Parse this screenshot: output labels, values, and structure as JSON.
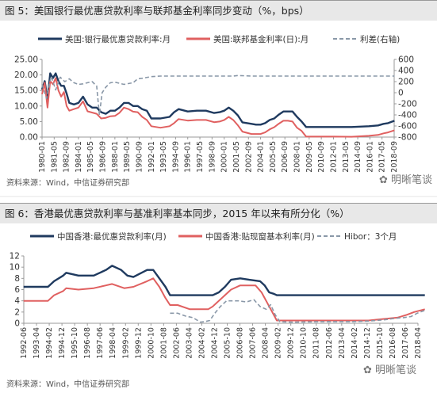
{
  "panels": [
    {
      "title": "图 5：美国银行最优惠贷款利率与联邦基金利率同步变动（%，bps）",
      "source": "资料来源：Wind，中信证券研究部",
      "watermark": "明晰笔谈"
    },
    {
      "title": "图 6：香港最优惠贷款利率与基准利率基本同步，2015 年以来有所分化（%）",
      "source": "资料来源：Wind，中信证券研究部",
      "watermark": "明晰笔谈"
    }
  ],
  "chart_data": [
    {
      "type": "line",
      "title": "图 5：美国银行最优惠贷款利率与联邦基金利率同步变动（%，bps）",
      "x_ticks": [
        "1980-01",
        "1981-05",
        "1982-09",
        "1984-01",
        "1985-05",
        "1986-09",
        "1988-01",
        "1989-05",
        "1990-09",
        "1992-01",
        "1993-05",
        "1994-09",
        "1996-01",
        "1997-05",
        "1998-09",
        "2000-01",
        "2001-05",
        "2002-09",
        "2004-01",
        "2005-05",
        "2006-09",
        "2008-01",
        "2009-05",
        "2010-09",
        "2012-01",
        "2013-05",
        "2014-09",
        "2016-01",
        "2017-05",
        "2018-09"
      ],
      "y_left": {
        "lim": [
          0,
          25
        ],
        "ticks": [
          "0.00",
          "5.00",
          "10.00",
          "15.00",
          "20.00",
          "25.00"
        ]
      },
      "y_right": {
        "lim": [
          -800,
          600
        ],
        "ticks": [
          "-800",
          "-600",
          "-400",
          "-200",
          "0",
          "200",
          "400",
          "600"
        ]
      },
      "legend_position": "top",
      "series": [
        {
          "name": "美国:银行最优惠贷款利率:月",
          "axis": "left",
          "color": "#1f3a5f",
          "style": "solid",
          "x": [
            1980.0,
            1980.3,
            1980.6,
            1980.9,
            1981.2,
            1981.5,
            1981.8,
            1982.1,
            1982.4,
            1982.7,
            1983.0,
            1983.5,
            1984.0,
            1984.5,
            1985.0,
            1985.5,
            1986.0,
            1986.5,
            1987.0,
            1987.5,
            1988.0,
            1988.5,
            1989.0,
            1989.5,
            1990.0,
            1990.5,
            1991.0,
            1991.5,
            1992.0,
            1993.0,
            1994.0,
            1994.5,
            1995.0,
            1996.0,
            1997.0,
            1998.0,
            1998.9,
            1999.5,
            2000.0,
            2000.5,
            2001.0,
            2001.5,
            2002.0,
            2003.0,
            2003.5,
            2004.0,
            2004.5,
            2005.0,
            2005.5,
            2006.0,
            2006.5,
            2007.0,
            2007.5,
            2008.0,
            2008.5,
            2009.0,
            2010.0,
            2012.0,
            2014.0,
            2015.9,
            2016.9,
            2017.5,
            2018.0,
            2018.7
          ],
          "y": [
            15.3,
            18.0,
            12.0,
            20.5,
            19.0,
            20.5,
            18.0,
            16.5,
            16.5,
            14.0,
            11.0,
            10.5,
            11.0,
            13.0,
            10.5,
            9.5,
            9.5,
            8.0,
            7.5,
            8.5,
            8.5,
            9.5,
            11.0,
            11.0,
            10.0,
            10.0,
            9.0,
            8.5,
            6.0,
            6.0,
            6.5,
            8.0,
            9.0,
            8.25,
            8.5,
            8.5,
            7.75,
            8.0,
            8.5,
            9.5,
            8.5,
            7.0,
            4.75,
            4.25,
            4.0,
            4.0,
            4.5,
            5.5,
            6.0,
            7.25,
            8.25,
            8.25,
            8.25,
            6.5,
            5.0,
            3.25,
            3.25,
            3.25,
            3.25,
            3.5,
            3.75,
            4.25,
            4.5,
            5.25
          ]
        },
        {
          "name": "美国:联邦基金利率(日):月",
          "axis": "left",
          "color": "#e06060",
          "style": "solid",
          "x": [
            1980.0,
            1980.3,
            1980.6,
            1980.9,
            1981.2,
            1981.5,
            1981.8,
            1982.1,
            1982.4,
            1982.7,
            1983.0,
            1983.5,
            1984.0,
            1984.5,
            1985.0,
            1986.0,
            1986.5,
            1987.0,
            1987.5,
            1988.0,
            1988.5,
            1989.0,
            1989.5,
            1990.0,
            1990.5,
            1991.0,
            1991.5,
            1992.0,
            1993.0,
            1994.0,
            1994.5,
            1995.0,
            1996.0,
            1997.0,
            1998.0,
            1998.9,
            1999.5,
            2000.0,
            2000.5,
            2001.0,
            2001.5,
            2002.0,
            2003.0,
            2004.0,
            2004.5,
            2005.0,
            2005.5,
            2006.0,
            2006.5,
            2007.0,
            2007.5,
            2008.0,
            2008.5,
            2009.0,
            2010.0,
            2012.0,
            2014.0,
            2015.9,
            2016.9,
            2017.5,
            2018.0,
            2018.7
          ],
          "y": [
            13.8,
            17.5,
            9.5,
            18.0,
            17.0,
            19.0,
            15.0,
            13.0,
            14.5,
            10.0,
            8.5,
            9.0,
            9.5,
            11.5,
            8.3,
            7.5,
            6.0,
            6.2,
            6.7,
            6.8,
            7.8,
            9.5,
            9.0,
            8.2,
            8.0,
            6.5,
            5.5,
            3.5,
            3.0,
            3.5,
            4.5,
            5.8,
            5.3,
            5.5,
            5.5,
            4.8,
            5.0,
            5.5,
            6.5,
            5.5,
            3.8,
            1.75,
            1.0,
            1.0,
            1.5,
            2.5,
            3.2,
            4.3,
            5.25,
            5.25,
            5.0,
            3.0,
            2.0,
            0.15,
            0.15,
            0.15,
            0.1,
            0.4,
            0.7,
            1.2,
            1.5,
            2.2
          ]
        },
        {
          "name": "利差(右轴)",
          "axis": "right",
          "color": "#8a98a8",
          "style": "dashed",
          "x": [
            1980.0,
            1980.5,
            1981.0,
            1981.5,
            1982.0,
            1982.5,
            1983.0,
            1983.5,
            1984.0,
            1984.5,
            1985.0,
            1985.5,
            1986.0,
            1986.3,
            1986.6,
            1987.0,
            1987.5,
            1988.0,
            1989.0,
            1990.0,
            1990.5,
            1991.0,
            1992.0,
            1993.0,
            1995.0,
            1997.0,
            1999.0,
            2001.0,
            2001.5,
            2003.0,
            2005.0,
            2007.0,
            2008.5,
            2009.0,
            2012.0,
            2015.0,
            2018.0,
            2018.7
          ],
          "y": [
            150,
            -100,
            300,
            50,
            280,
            200,
            250,
            180,
            150,
            160,
            180,
            200,
            120,
            -400,
            0,
            100,
            180,
            190,
            150,
            180,
            250,
            260,
            290,
            300,
            300,
            300,
            300,
            300,
            310,
            300,
            300,
            300,
            300,
            300,
            300,
            300,
            300,
            300
          ]
        }
      ]
    },
    {
      "type": "line",
      "title": "图 6：香港最优惠贷款利率与基准利率基本同步，2015 年以来有所分化（%）",
      "x_ticks": [
        "1992-06",
        "1993-04",
        "1994-02",
        "1994-12",
        "1995-10",
        "1996-08",
        "1997-06",
        "1998-04",
        "1999-02",
        "1999-12",
        "2000-10",
        "2001-08",
        "2002-06",
        "2003-04",
        "2004-02",
        "2004-12",
        "2005-10",
        "2006-08",
        "2007-06",
        "2008-04",
        "2009-02",
        "2009-12",
        "2010-10",
        "2011-08",
        "2012-06",
        "2013-04",
        "2014-02",
        "2014-12",
        "2015-10",
        "2016-08",
        "2017-06",
        "2018-04"
      ],
      "y_left": {
        "lim": [
          0,
          12
        ],
        "ticks": [
          "0",
          "2",
          "4",
          "6",
          "8",
          "10",
          "12"
        ]
      },
      "legend_position": "top",
      "series": [
        {
          "name": "中国香港:最优惠贷款利率(月)",
          "axis": "left",
          "color": "#1f3a5f",
          "style": "solid",
          "x": [
            1992.4,
            1994.0,
            1994.4,
            1995.0,
            1995.2,
            1996.0,
            1997.0,
            1997.8,
            1998.2,
            1998.8,
            1999.2,
            1999.6,
            2000.5,
            2000.9,
            2001.3,
            2001.7,
            2002.0,
            2002.5,
            2003.5,
            2004.5,
            2004.8,
            2005.2,
            2005.6,
            2006.0,
            2006.6,
            2007.2,
            2007.9,
            2008.2,
            2008.5,
            2008.8,
            2009.0,
            2012.0,
            2015.0,
            2017.0,
            2018.7
          ],
          "y": [
            6.5,
            6.5,
            7.5,
            8.5,
            9.0,
            8.5,
            8.5,
            9.5,
            10.25,
            9.5,
            8.5,
            8.25,
            9.5,
            9.5,
            8.0,
            6.5,
            5.0,
            5.0,
            5.0,
            5.0,
            5.0,
            5.5,
            6.5,
            7.75,
            8.0,
            7.75,
            7.5,
            6.75,
            5.5,
            5.25,
            5.0,
            5.0,
            5.0,
            5.0,
            5.0
          ]
        },
        {
          "name": "中国香港:贴现窗基本利率(月)",
          "axis": "left",
          "color": "#e06060",
          "style": "solid",
          "x": [
            1992.4,
            1994.0,
            1994.4,
            1995.0,
            1995.2,
            1996.0,
            1997.0,
            1997.8,
            1998.2,
            1999.0,
            1999.6,
            2000.5,
            2000.9,
            2001.3,
            2001.7,
            2002.0,
            2002.5,
            2003.3,
            2003.8,
            2004.5,
            2004.8,
            2005.2,
            2005.6,
            2006.0,
            2006.6,
            2007.2,
            2007.6,
            2008.0,
            2008.4,
            2008.8,
            2009.0,
            2012.0,
            2015.0,
            2015.9,
            2016.9,
            2017.5,
            2018.0,
            2018.7
          ],
          "y": [
            4.0,
            4.0,
            5.0,
            5.75,
            6.25,
            6.0,
            6.25,
            6.75,
            7.0,
            6.25,
            6.5,
            7.5,
            8.0,
            6.5,
            4.5,
            3.25,
            3.25,
            2.5,
            2.5,
            2.5,
            3.0,
            4.0,
            5.0,
            6.0,
            6.75,
            6.75,
            6.75,
            5.5,
            3.5,
            1.5,
            0.5,
            0.5,
            0.5,
            0.75,
            1.0,
            1.5,
            2.0,
            2.5
          ]
        },
        {
          "name": "Hibor：3个月",
          "axis": "left",
          "color": "#8a98a8",
          "style": "dashed",
          "x": [
            2002.0,
            2002.5,
            2003.0,
            2003.5,
            2004.0,
            2004.3,
            2004.6,
            2005.0,
            2005.3,
            2005.7,
            2006.0,
            2006.5,
            2007.0,
            2007.5,
            2007.9,
            2008.3,
            2008.6,
            2008.9,
            2009.2,
            2010.0,
            2012.0,
            2014.0,
            2015.0,
            2016.0,
            2016.8,
            2017.3,
            2017.8,
            2018.2,
            2018.7
          ],
          "y": [
            1.8,
            1.8,
            1.3,
            1.0,
            0.2,
            0.3,
            0.5,
            2.0,
            3.0,
            4.0,
            4.0,
            4.0,
            3.8,
            4.2,
            3.0,
            2.5,
            3.3,
            1.5,
            0.3,
            0.2,
            0.3,
            0.3,
            0.4,
            0.6,
            0.9,
            1.0,
            1.2,
            1.8,
            2.3
          ]
        }
      ]
    }
  ]
}
